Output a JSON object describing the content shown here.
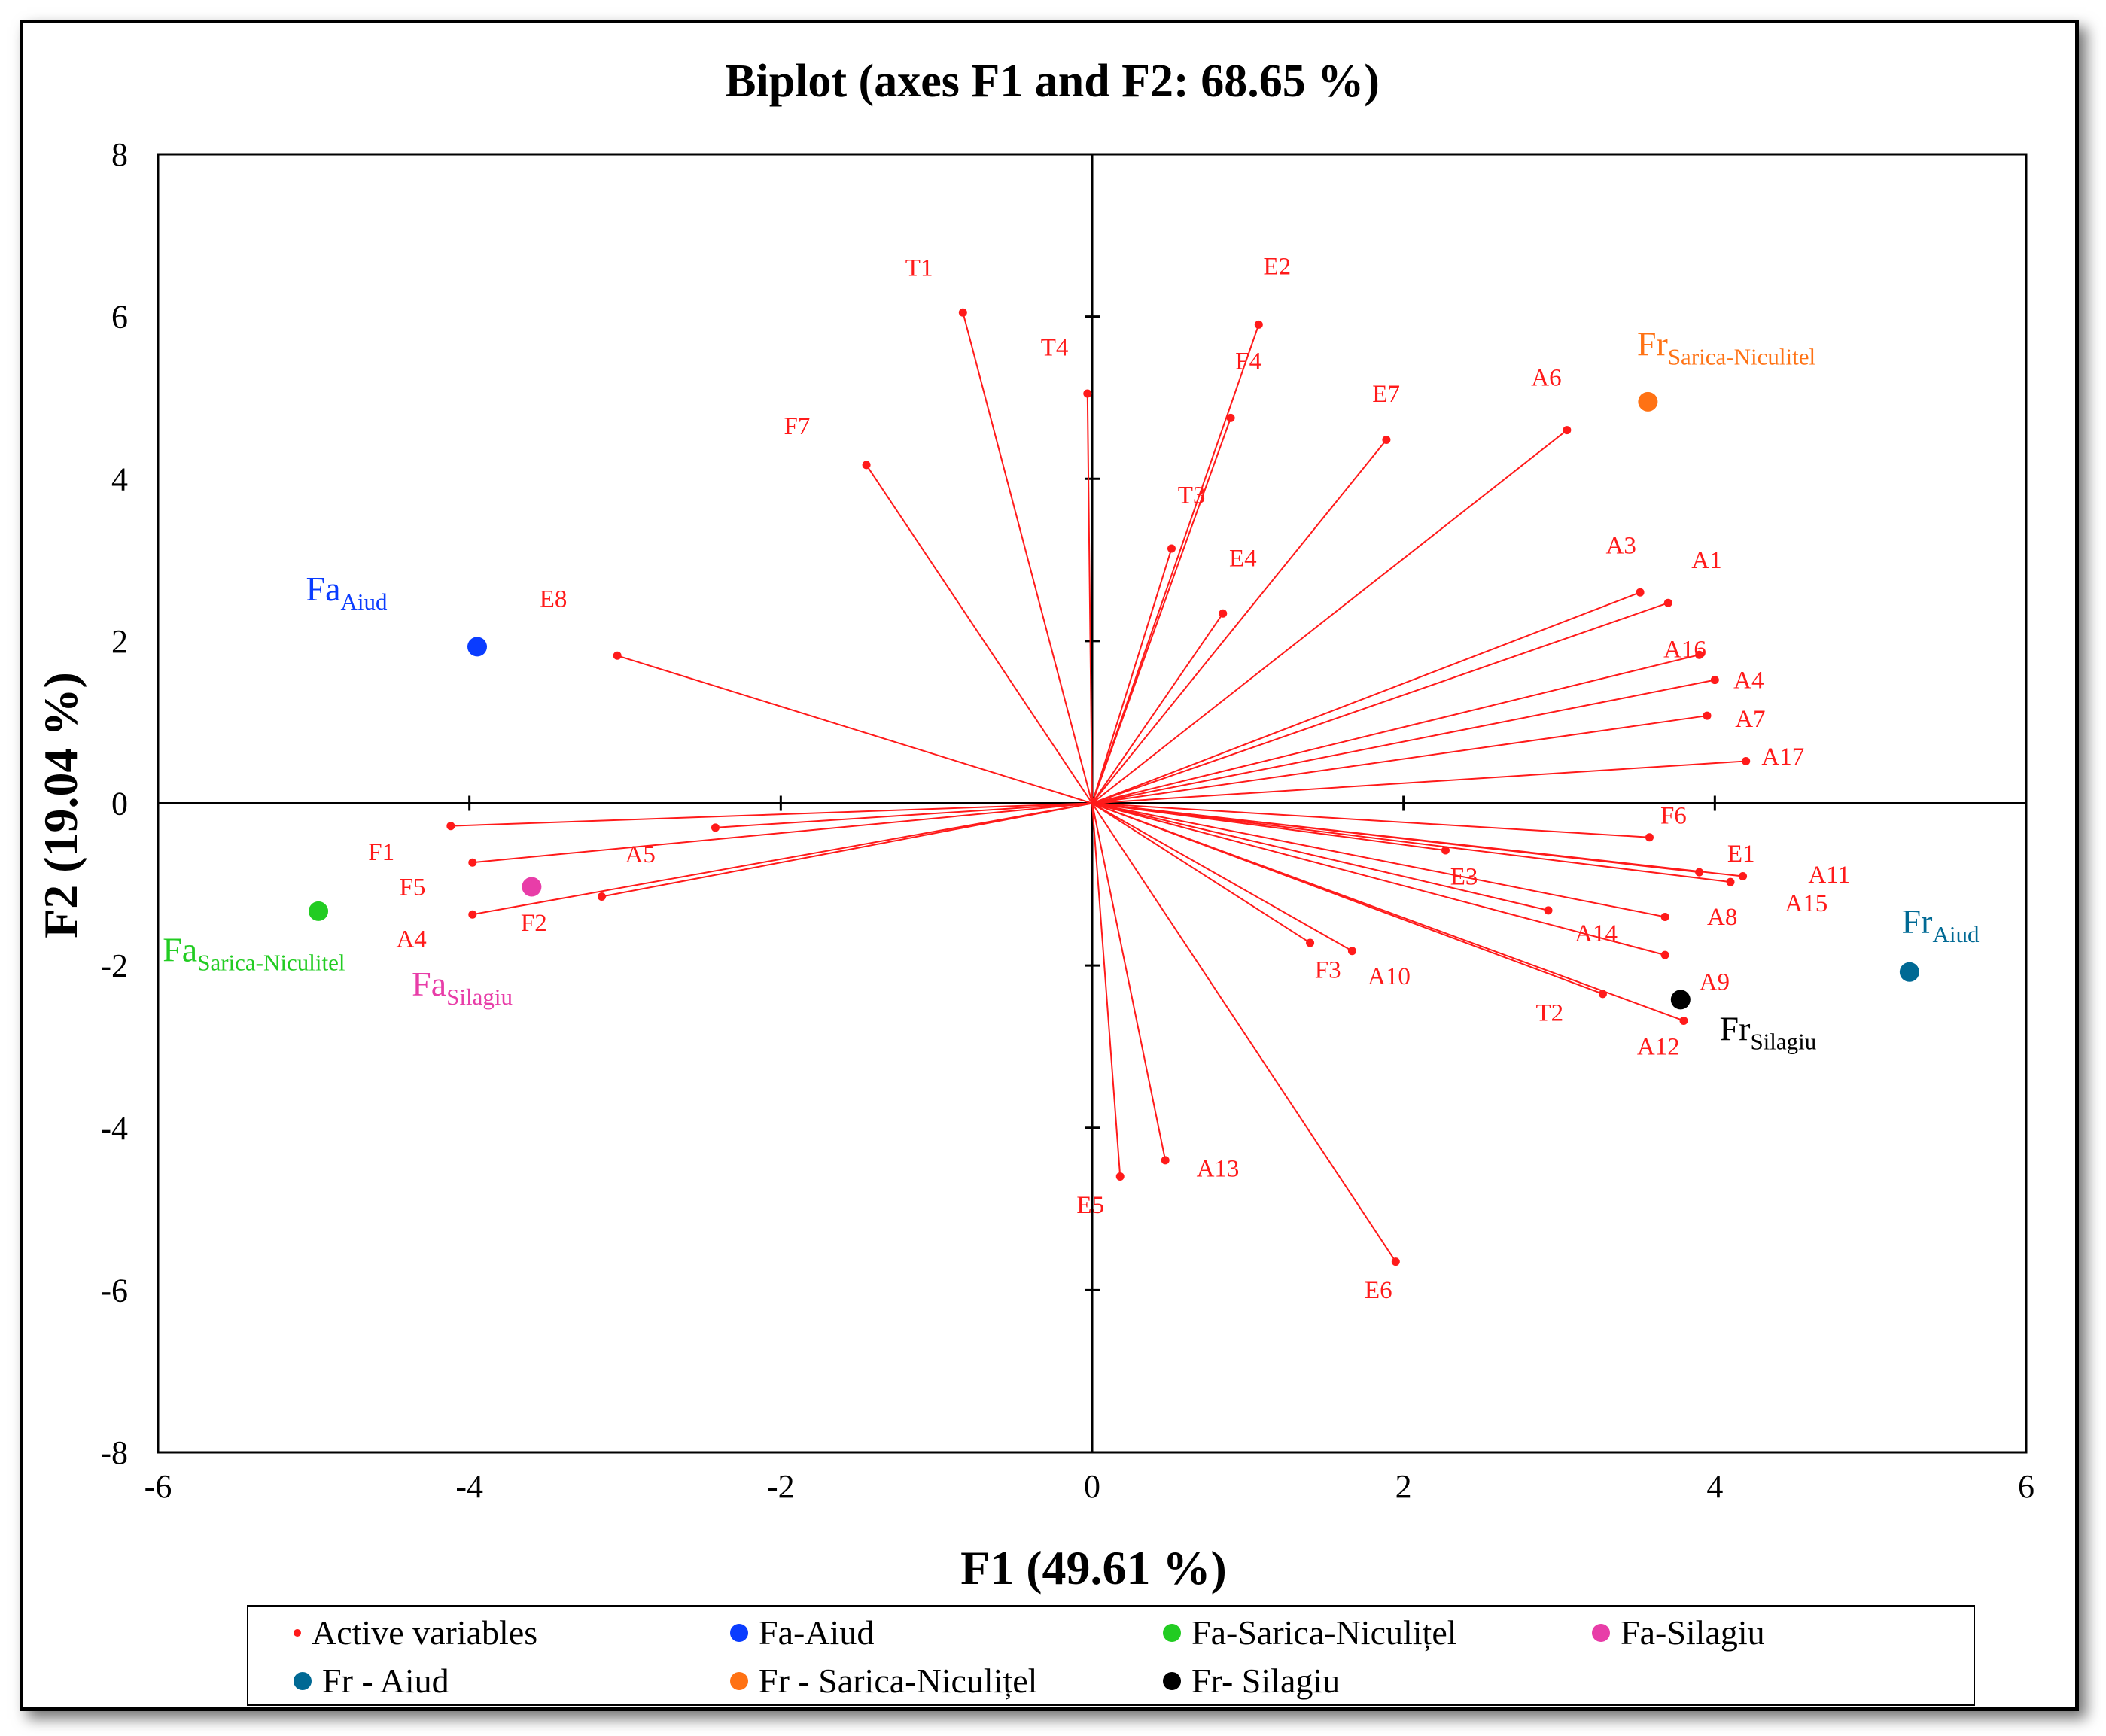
{
  "chart_data": {
    "type": "scatter",
    "title": "Biplot (axes F1 and F2: 68.65 %)",
    "xlabel": "F1 (49.61 %)",
    "ylabel": "F2 (19.04 %)",
    "xlim": [
      -6,
      6
    ],
    "ylim": [
      -8,
      8
    ],
    "xticks": [
      -6,
      -4,
      -2,
      0,
      2,
      4,
      6
    ],
    "yticks": [
      -8,
      -6,
      -4,
      -2,
      0,
      2,
      4,
      6,
      8
    ],
    "grid": false,
    "legend_position": "bottom",
    "colors": {
      "vector": "#ff1a1a",
      "fa_aiud": "#0a3cff",
      "fa_sarica": "#22cc22",
      "fa_silagiu": "#e83da8",
      "fr_aiud": "#006994",
      "fr_sarica": "#ff7214",
      "fr_silagiu": "#000000"
    },
    "variables": [
      {
        "name": "T1",
        "x": -0.83,
        "y": 6.05,
        "lx": -1.2,
        "ly": 6.5
      },
      {
        "name": "T4",
        "x": -0.03,
        "y": 5.05,
        "lx": -0.33,
        "ly": 5.52
      },
      {
        "name": "E2",
        "x": 1.07,
        "y": 5.9,
        "lx": 1.1,
        "ly": 6.52
      },
      {
        "name": "F4",
        "x": 0.89,
        "y": 4.75,
        "lx": 0.92,
        "ly": 5.35
      },
      {
        "name": "E7",
        "x": 1.89,
        "y": 4.48,
        "lx": 1.8,
        "ly": 4.95
      },
      {
        "name": "A6",
        "x": 3.05,
        "y": 4.6,
        "lx": 2.82,
        "ly": 5.15
      },
      {
        "name": "F7",
        "x": -1.45,
        "y": 4.17,
        "lx": -1.98,
        "ly": 4.55
      },
      {
        "name": "T3",
        "x": 0.51,
        "y": 3.14,
        "lx": 0.55,
        "ly": 3.7
      },
      {
        "name": "E4",
        "x": 0.84,
        "y": 2.34,
        "lx": 0.88,
        "ly": 2.92
      },
      {
        "name": "E8",
        "x": -3.05,
        "y": 1.82,
        "lx": -3.55,
        "ly": 2.42
      },
      {
        "name": "A3",
        "x": 3.52,
        "y": 2.6,
        "lx": 3.3,
        "ly": 3.08
      },
      {
        "name": "A1",
        "x": 3.7,
        "y": 2.47,
        "lx": 3.85,
        "ly": 2.9
      },
      {
        "name": "A16",
        "x": 3.9,
        "y": 1.83,
        "lx": 3.67,
        "ly": 1.8
      },
      {
        "name": "A4",
        "x": 4.0,
        "y": 1.52,
        "lx": 4.12,
        "ly": 1.42
      },
      {
        "name": "A7",
        "x": 3.95,
        "y": 1.08,
        "lx": 4.13,
        "ly": 0.94
      },
      {
        "name": "A17",
        "x": 4.2,
        "y": 0.52,
        "lx": 4.3,
        "ly": 0.48
      },
      {
        "name": "F6",
        "x": 3.58,
        "y": -0.42,
        "lx": 3.65,
        "ly": -0.25
      },
      {
        "name": "E1",
        "x": 3.9,
        "y": -0.85,
        "lx": 4.08,
        "ly": -0.72
      },
      {
        "name": "A11",
        "x": 4.18,
        "y": -0.9,
        "lx": 4.6,
        "ly": -0.98
      },
      {
        "name": "A15",
        "x": 4.1,
        "y": -0.97,
        "lx": 4.45,
        "ly": -1.33
      },
      {
        "name": "E3",
        "x": 2.27,
        "y": -0.58,
        "lx": 2.3,
        "ly": -1.0
      },
      {
        "name": "A8",
        "x": 3.68,
        "y": -1.4,
        "lx": 3.95,
        "ly": -1.5
      },
      {
        "name": "A14",
        "x": 2.93,
        "y": -1.32,
        "lx": 3.1,
        "ly": -1.7
      },
      {
        "name": "A9",
        "x": 3.68,
        "y": -1.87,
        "lx": 3.9,
        "ly": -2.3
      },
      {
        "name": "T2",
        "x": 3.28,
        "y": -2.35,
        "lx": 2.85,
        "ly": -2.68
      },
      {
        "name": "A12",
        "x": 3.8,
        "y": -2.68,
        "lx": 3.5,
        "ly": -3.1
      },
      {
        "name": "F3",
        "x": 1.4,
        "y": -1.72,
        "lx": 1.43,
        "ly": -2.15
      },
      {
        "name": "A10",
        "x": 1.67,
        "y": -1.82,
        "lx": 1.77,
        "ly": -2.23
      },
      {
        "name": "A13",
        "x": 0.47,
        "y": -4.4,
        "lx": 0.67,
        "ly": -4.6
      },
      {
        "name": "E5",
        "x": 0.18,
        "y": -4.6,
        "lx": -0.1,
        "ly": -5.05
      },
      {
        "name": "E6",
        "x": 1.95,
        "y": -5.65,
        "lx": 1.75,
        "ly": -6.1
      },
      {
        "name": "F1",
        "x": -4.12,
        "y": -0.28,
        "lx": -4.65,
        "ly": -0.7
      },
      {
        "name": "F5",
        "x": -3.98,
        "y": -0.73,
        "lx": -4.45,
        "ly": -1.13
      },
      {
        "name": "A4",
        "x": -3.98,
        "y": -1.37,
        "lx": -4.47,
        "ly": -1.77
      },
      {
        "name": "F2",
        "x": -3.15,
        "y": -1.15,
        "lx": -3.67,
        "ly": -1.57
      },
      {
        "name": "A5",
        "x": -2.42,
        "y": -0.3,
        "lx": -3.0,
        "ly": -0.73
      }
    ],
    "observations": [
      {
        "name": "Fa",
        "sub": "Aiud",
        "x": -3.95,
        "y": 1.93,
        "lx": -5.05,
        "ly": 2.5,
        "color": "#0a3cff",
        "legend": "Fa-Aiud"
      },
      {
        "name": "Fa",
        "sub": "Sarica-Niculitel",
        "x": -4.97,
        "y": -1.33,
        "lx": -5.97,
        "ly": -1.95,
        "color": "#22cc22",
        "legend": "Fa-Sarica-Niculițel"
      },
      {
        "name": "Fa",
        "sub": "Silagiu",
        "x": -3.6,
        "y": -1.03,
        "lx": -4.37,
        "ly": -2.37,
        "color": "#e83da8",
        "legend": "Fa-Silagiu"
      },
      {
        "name": "Fr",
        "sub": "Aiud",
        "x": 5.25,
        "y": -2.08,
        "lx": 5.2,
        "ly": -1.6,
        "color": "#006994",
        "legend": "Fr - Aiud"
      },
      {
        "name": "Fr",
        "sub": "Sarica-Niculitel",
        "x": 3.57,
        "y": 4.95,
        "lx": 3.5,
        "ly": 5.52,
        "color": "#ff7214",
        "legend": "Fr - Sarica-Niculițel"
      },
      {
        "name": "Fr",
        "sub": "Silagiu",
        "x": 3.78,
        "y": -2.42,
        "lx": 4.03,
        "ly": -2.92,
        "color": "#000000",
        "legend": "Fr- Silagiu"
      }
    ],
    "legend": [
      "Active variables",
      "Fa-Aiud",
      "Fa-Sarica-Niculițel",
      "Fa-Silagiu",
      "Fr - Aiud",
      "Fr - Sarica-Niculițel",
      "Fr- Silagiu"
    ]
  }
}
